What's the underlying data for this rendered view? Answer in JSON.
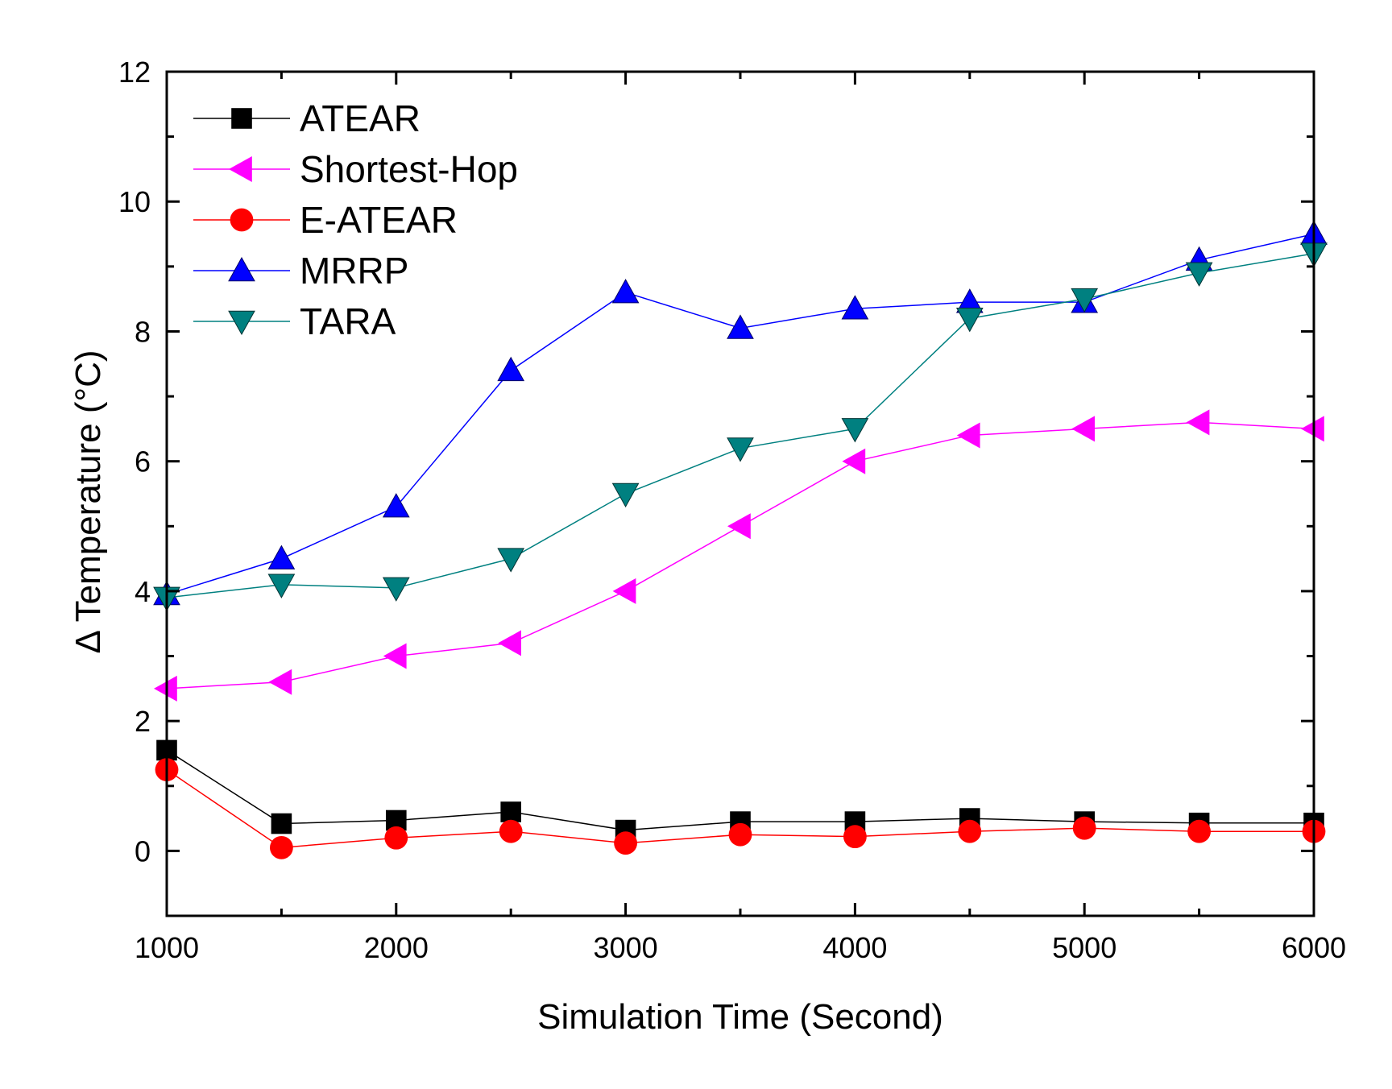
{
  "chart_data": {
    "type": "line",
    "xlabel": "Simulation Time (Second)",
    "ylabel": "Δ Temperature (°C)",
    "xlim": [
      1000,
      6000
    ],
    "ylim": [
      -1,
      12
    ],
    "xticks": [
      1000,
      2000,
      3000,
      4000,
      5000,
      6000
    ],
    "xtick_labels": [
      "1000",
      "2000",
      "3000",
      "4000",
      "5000",
      "6000"
    ],
    "yticks": [
      0,
      2,
      4,
      6,
      8,
      10,
      12
    ],
    "ytick_labels": [
      "0",
      "2",
      "4",
      "6",
      "8",
      "10",
      "12"
    ],
    "grid": false,
    "legend_position": "top-left",
    "x": [
      1000,
      1500,
      2000,
      2500,
      3000,
      3500,
      4000,
      4500,
      5000,
      5500,
      6000
    ],
    "series": [
      {
        "name": "ATEAR",
        "color": "#000000",
        "marker": "square",
        "values": [
          1.55,
          0.42,
          0.47,
          0.6,
          0.32,
          0.45,
          0.45,
          0.5,
          0.45,
          0.43,
          0.43
        ]
      },
      {
        "name": "Shortest-Hop",
        "color": "#ff00ff",
        "marker": "triangle-left",
        "values": [
          2.5,
          2.6,
          3.0,
          3.2,
          4.0,
          5.0,
          6.0,
          6.4,
          6.5,
          6.6,
          6.5
        ]
      },
      {
        "name": "E-ATEAR",
        "color": "#ff0000",
        "marker": "circle",
        "values": [
          1.25,
          0.05,
          0.2,
          0.3,
          0.12,
          0.25,
          0.22,
          0.3,
          0.35,
          0.3,
          0.3
        ]
      },
      {
        "name": "MRRP",
        "color": "#0000ff",
        "marker": "triangle-up",
        "values": [
          3.95,
          4.5,
          5.3,
          7.4,
          8.6,
          8.05,
          8.35,
          8.45,
          8.45,
          9.1,
          9.5
        ]
      },
      {
        "name": "TARA",
        "color": "#008080",
        "marker": "triangle-down",
        "values": [
          3.9,
          4.1,
          4.05,
          4.5,
          5.5,
          6.2,
          6.5,
          8.2,
          8.5,
          8.9,
          9.2
        ]
      }
    ]
  }
}
